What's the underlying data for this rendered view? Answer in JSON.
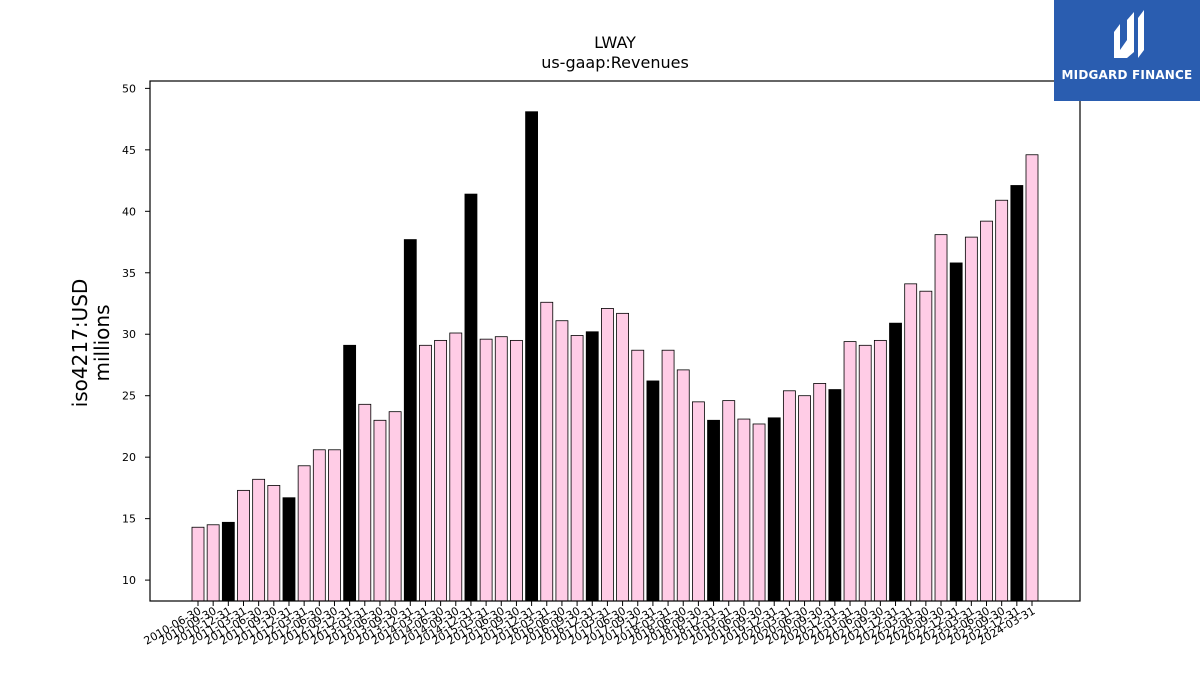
{
  "chart_data": {
    "type": "bar",
    "title": "LWAY",
    "subtitle": "us-gaap:Revenues",
    "ylabel_line1": "iso4217:USD",
    "ylabel_line2": "millions",
    "ylim": [
      8.3,
      50.6
    ],
    "yticks": [
      10,
      15,
      20,
      25,
      30,
      35,
      40,
      45,
      50
    ],
    "grid": false,
    "colors": {
      "quarter": "#ffcce6",
      "annual": "#000000",
      "edge": "#000000"
    },
    "categories": [
      "2010-06-30",
      "2010-09-30",
      "2010-12-31",
      "2011-03-31",
      "2011-06-30",
      "2011-09-30",
      "2011-12-31",
      "2012-03-31",
      "2012-06-30",
      "2012-09-30",
      "2012-12-31",
      "2013-03-31",
      "2013-06-30",
      "2013-09-30",
      "2013-12-31",
      "2014-03-31",
      "2014-06-30",
      "2014-09-30",
      "2014-12-31",
      "2015-03-31",
      "2015-06-30",
      "2015-09-30",
      "2015-12-31",
      "2016-03-31",
      "2016-06-30",
      "2016-09-30",
      "2016-12-31",
      "2017-03-31",
      "2017-06-30",
      "2017-09-30",
      "2017-12-31",
      "2018-03-31",
      "2018-06-30",
      "2018-09-30",
      "2018-12-31",
      "2019-03-31",
      "2019-06-30",
      "2019-09-30",
      "2019-12-31",
      "2020-03-31",
      "2020-06-30",
      "2020-09-30",
      "2020-12-31",
      "2021-03-31",
      "2021-06-30",
      "2021-09-30",
      "2021-12-31",
      "2022-03-31",
      "2022-06-30",
      "2022-09-30",
      "2022-12-31",
      "2023-03-31",
      "2023-06-30",
      "2023-09-30",
      "2023-12-31",
      "2024-03-31"
    ],
    "values": [
      14.3,
      14.5,
      14.7,
      17.3,
      18.2,
      17.7,
      16.7,
      19.3,
      20.6,
      20.6,
      29.1,
      24.3,
      23.0,
      23.7,
      37.7,
      29.1,
      29.5,
      30.1,
      41.4,
      29.6,
      29.8,
      29.5,
      48.1,
      32.6,
      31.1,
      29.9,
      30.2,
      32.1,
      31.7,
      28.7,
      26.2,
      28.7,
      27.1,
      24.5,
      23.0,
      24.6,
      23.1,
      22.7,
      23.2,
      25.4,
      25.0,
      26.0,
      25.5,
      29.4,
      29.1,
      29.5,
      30.9,
      34.1,
      33.5,
      38.1,
      35.8,
      37.9,
      39.2,
      40.9,
      42.1,
      44.6
    ],
    "annual_flags": [
      0,
      0,
      1,
      0,
      0,
      0,
      1,
      0,
      0,
      0,
      1,
      0,
      0,
      0,
      1,
      0,
      0,
      0,
      1,
      0,
      0,
      0,
      1,
      0,
      0,
      0,
      1,
      0,
      0,
      0,
      1,
      0,
      0,
      0,
      1,
      0,
      0,
      0,
      1,
      0,
      0,
      0,
      1,
      0,
      0,
      0,
      1,
      0,
      0,
      0,
      1,
      0,
      0,
      0,
      1,
      0
    ]
  },
  "logo": {
    "text": "MIDGARD FINANCE",
    "lettering": "M"
  }
}
